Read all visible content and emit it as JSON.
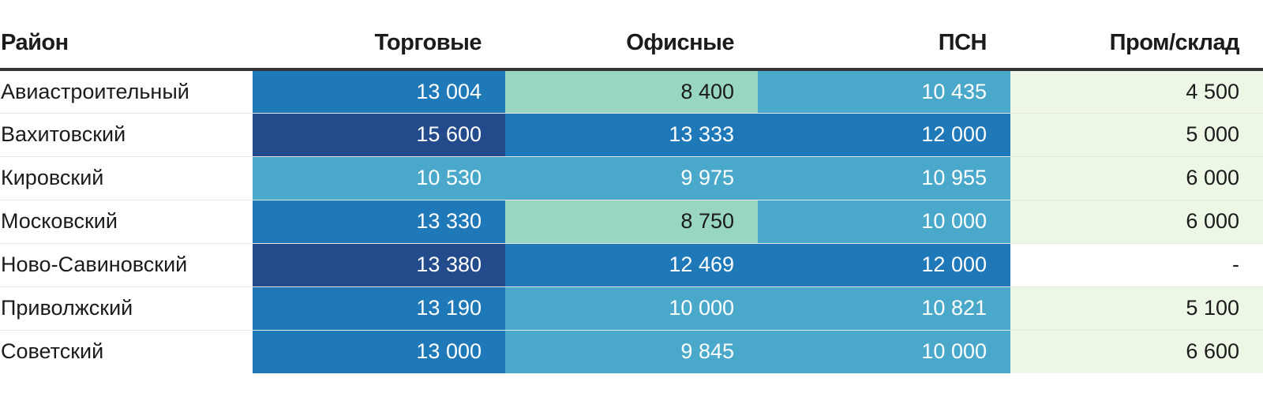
{
  "table": {
    "columns": [
      "Район",
      "Торговые",
      "Офисные",
      "ПСН",
      "Пром/склад"
    ],
    "rows": [
      {
        "district": "Авиастроительный",
        "cells": [
          {
            "text": "13 004",
            "bg": "#1f78b8",
            "fg": "#ffffff"
          },
          {
            "text": "8 400",
            "bg": "#98d6c2",
            "fg": "#1b1b1b"
          },
          {
            "text": "10 435",
            "bg": "#4aa8cb",
            "fg": "#ffffff"
          },
          {
            "text": "4 500",
            "bg": "#edf7e6",
            "fg": "#1b1b1b"
          }
        ]
      },
      {
        "district": "Вахитовский",
        "cells": [
          {
            "text": "15 600",
            "bg": "#234b8c",
            "fg": "#ffffff"
          },
          {
            "text": "13 333",
            "bg": "#1f78b8",
            "fg": "#ffffff"
          },
          {
            "text": "12 000",
            "bg": "#1f78b8",
            "fg": "#ffffff"
          },
          {
            "text": "5 000",
            "bg": "#edf7e6",
            "fg": "#1b1b1b"
          }
        ]
      },
      {
        "district": "Кировский",
        "cells": [
          {
            "text": "10 530",
            "bg": "#4aa8cb",
            "fg": "#ffffff"
          },
          {
            "text": "9 975",
            "bg": "#4aa8cb",
            "fg": "#ffffff"
          },
          {
            "text": "10 955",
            "bg": "#4aa8cb",
            "fg": "#ffffff"
          },
          {
            "text": "6 000",
            "bg": "#edf7e6",
            "fg": "#1b1b1b"
          }
        ]
      },
      {
        "district": "Московский",
        "cells": [
          {
            "text": "13 330",
            "bg": "#1f78b8",
            "fg": "#ffffff"
          },
          {
            "text": "8 750",
            "bg": "#98d6c2",
            "fg": "#1b1b1b"
          },
          {
            "text": "10 000",
            "bg": "#4aa8cb",
            "fg": "#ffffff"
          },
          {
            "text": "6 000",
            "bg": "#edf7e6",
            "fg": "#1b1b1b"
          }
        ]
      },
      {
        "district": "Ново-Савиновский",
        "cells": [
          {
            "text": "13 380",
            "bg": "#234b8c",
            "fg": "#ffffff"
          },
          {
            "text": "12 469",
            "bg": "#1f78b8",
            "fg": "#ffffff"
          },
          {
            "text": "12 000",
            "bg": "#1f78b8",
            "fg": "#ffffff"
          },
          {
            "text": "-",
            "bg": "#ffffff",
            "fg": "#1b1b1b"
          }
        ]
      },
      {
        "district": "Приволжский",
        "cells": [
          {
            "text": "13 190",
            "bg": "#1f78b8",
            "fg": "#ffffff"
          },
          {
            "text": "10 000",
            "bg": "#4aa8cb",
            "fg": "#ffffff"
          },
          {
            "text": "10 821",
            "bg": "#4aa8cb",
            "fg": "#ffffff"
          },
          {
            "text": "5 100",
            "bg": "#edf7e6",
            "fg": "#1b1b1b"
          }
        ]
      },
      {
        "district": "Советский",
        "cells": [
          {
            "text": "13 000",
            "bg": "#1f78b8",
            "fg": "#ffffff"
          },
          {
            "text": "9 845",
            "bg": "#4aa8cb",
            "fg": "#ffffff"
          },
          {
            "text": "10 000",
            "bg": "#4aa8cb",
            "fg": "#ffffff"
          },
          {
            "text": "6 600",
            "bg": "#edf7e6",
            "fg": "#1b1b1b"
          }
        ]
      }
    ]
  },
  "chart_data": {
    "type": "table",
    "columns": [
      "Район",
      "Торговые",
      "Офисные",
      "ПСН",
      "Пром/склад"
    ],
    "categories": [
      "Авиастроительный",
      "Вахитовский",
      "Кировский",
      "Московский",
      "Ново-Савиновский",
      "Приволжский",
      "Советский"
    ],
    "series": [
      {
        "name": "Торговые",
        "values": [
          13004,
          15600,
          10530,
          13330,
          13380,
          13190,
          13000
        ]
      },
      {
        "name": "Офисные",
        "values": [
          8400,
          13333,
          9975,
          8750,
          12469,
          10000,
          9845
        ]
      },
      {
        "name": "ПСН",
        "values": [
          10435,
          12000,
          10955,
          10000,
          12000,
          10821,
          10000
        ]
      },
      {
        "name": "Пром/склад",
        "values": [
          4500,
          5000,
          6000,
          6000,
          null,
          5100,
          6600
        ]
      }
    ]
  }
}
